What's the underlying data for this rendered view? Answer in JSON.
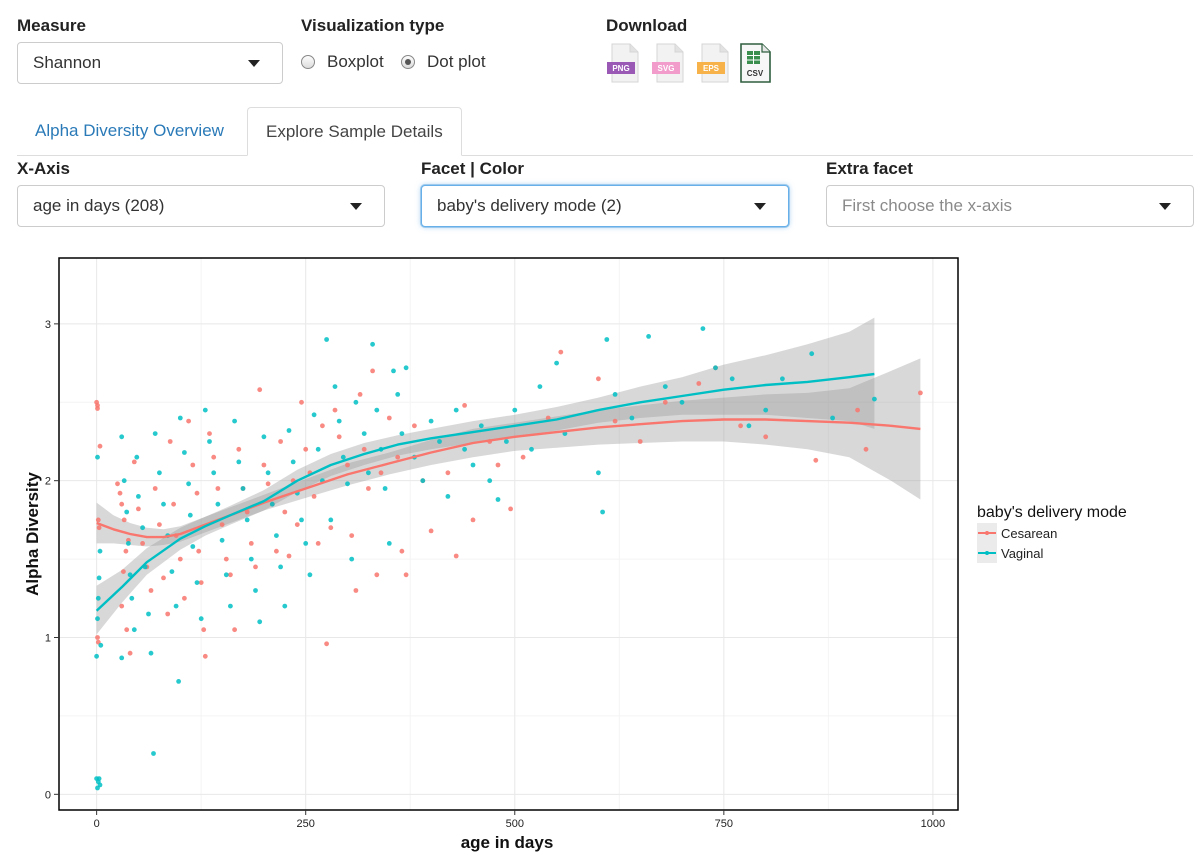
{
  "controls": {
    "measure": {
      "label": "Measure",
      "value": "Shannon"
    },
    "viz": {
      "label": "Visualization type",
      "options": [
        "Boxplot",
        "Dot plot"
      ],
      "selected": "Dot plot"
    },
    "download": {
      "label": "Download",
      "files": [
        "PNG",
        "SVG",
        "EPS",
        "CSV"
      ]
    }
  },
  "tabs": {
    "overview": "Alpha Diversity Overview",
    "details": "Explore Sample Details"
  },
  "filters": {
    "xaxis": {
      "label": "X-Axis",
      "value": "age in days (208)"
    },
    "facet": {
      "label": "Facet | Color",
      "value": "baby's delivery mode (2)"
    },
    "extra": {
      "label": "Extra facet",
      "placeholder": "First choose the x-axis"
    }
  },
  "chart_data": {
    "type": "scatter",
    "title": "",
    "xlabel": "age in days",
    "ylabel": "Alpha Diversity",
    "xlim": [
      -45,
      1030
    ],
    "ylim": [
      -0.1,
      3.42
    ],
    "xticks": [
      0,
      250,
      500,
      750,
      1000
    ],
    "yticks": [
      0,
      1,
      2,
      3
    ],
    "grid": true,
    "legend": {
      "title": "baby's delivery mode",
      "position": "right"
    },
    "series": [
      {
        "name": "Cesarean",
        "color": "#F8766D",
        "points": [
          [
            0,
            2.5
          ],
          [
            1,
            2.48
          ],
          [
            1,
            2.46
          ],
          [
            2,
            1.75
          ],
          [
            3,
            1.7
          ],
          [
            1,
            1.0
          ],
          [
            2,
            0.97
          ],
          [
            4,
            2.22
          ],
          [
            25,
            1.98
          ],
          [
            28,
            1.92
          ],
          [
            30,
            1.85
          ],
          [
            33,
            1.75
          ],
          [
            35,
            1.55
          ],
          [
            38,
            1.62
          ],
          [
            32,
            1.42
          ],
          [
            30,
            1.2
          ],
          [
            36,
            1.05
          ],
          [
            40,
            0.9
          ],
          [
            45,
            2.12
          ],
          [
            50,
            1.82
          ],
          [
            55,
            1.6
          ],
          [
            60,
            1.45
          ],
          [
            65,
            1.3
          ],
          [
            70,
            1.95
          ],
          [
            75,
            1.72
          ],
          [
            80,
            1.38
          ],
          [
            85,
            1.15
          ],
          [
            88,
            2.25
          ],
          [
            92,
            1.85
          ],
          [
            95,
            1.65
          ],
          [
            100,
            1.5
          ],
          [
            105,
            1.25
          ],
          [
            110,
            2.38
          ],
          [
            115,
            2.1
          ],
          [
            120,
            1.92
          ],
          [
            122,
            1.55
          ],
          [
            125,
            1.35
          ],
          [
            128,
            1.05
          ],
          [
            130,
            0.88
          ],
          [
            135,
            2.3
          ],
          [
            140,
            2.15
          ],
          [
            145,
            1.95
          ],
          [
            150,
            1.72
          ],
          [
            155,
            1.5
          ],
          [
            160,
            1.4
          ],
          [
            165,
            1.05
          ],
          [
            170,
            2.2
          ],
          [
            175,
            1.95
          ],
          [
            180,
            1.8
          ],
          [
            185,
            1.6
          ],
          [
            190,
            1.45
          ],
          [
            195,
            2.58
          ],
          [
            200,
            2.1
          ],
          [
            205,
            1.98
          ],
          [
            210,
            1.85
          ],
          [
            215,
            1.55
          ],
          [
            220,
            2.25
          ],
          [
            225,
            1.8
          ],
          [
            230,
            1.52
          ],
          [
            235,
            2.0
          ],
          [
            240,
            1.72
          ],
          [
            245,
            2.5
          ],
          [
            250,
            2.2
          ],
          [
            255,
            2.05
          ],
          [
            260,
            1.9
          ],
          [
            265,
            1.6
          ],
          [
            270,
            2.35
          ],
          [
            275,
            0.96
          ],
          [
            280,
            1.7
          ],
          [
            285,
            2.45
          ],
          [
            290,
            2.28
          ],
          [
            300,
            2.1
          ],
          [
            305,
            1.65
          ],
          [
            310,
            1.3
          ],
          [
            315,
            2.55
          ],
          [
            320,
            2.2
          ],
          [
            325,
            1.95
          ],
          [
            330,
            2.7
          ],
          [
            335,
            1.4
          ],
          [
            340,
            2.05
          ],
          [
            350,
            2.4
          ],
          [
            360,
            2.15
          ],
          [
            365,
            1.55
          ],
          [
            370,
            1.4
          ],
          [
            380,
            2.35
          ],
          [
            390,
            2.0
          ],
          [
            400,
            1.68
          ],
          [
            420,
            2.05
          ],
          [
            430,
            1.52
          ],
          [
            440,
            2.48
          ],
          [
            450,
            1.75
          ],
          [
            470,
            2.25
          ],
          [
            480,
            2.1
          ],
          [
            495,
            1.82
          ],
          [
            510,
            2.15
          ],
          [
            540,
            2.4
          ],
          [
            555,
            2.82
          ],
          [
            600,
            2.65
          ],
          [
            620,
            2.38
          ],
          [
            650,
            2.25
          ],
          [
            680,
            2.5
          ],
          [
            720,
            2.62
          ],
          [
            740,
            2.72
          ],
          [
            770,
            2.35
          ],
          [
            800,
            2.28
          ],
          [
            860,
            2.13
          ],
          [
            910,
            2.45
          ],
          [
            920,
            2.2
          ],
          [
            985,
            2.56
          ]
        ]
      },
      {
        "name": "Vaginal",
        "color": "#00BFC4",
        "points": [
          [
            0,
            0.1
          ],
          [
            2,
            0.08
          ],
          [
            3,
            0.1
          ],
          [
            4,
            0.06
          ],
          [
            1,
            0.04
          ],
          [
            0,
            0.88
          ],
          [
            1,
            1.12
          ],
          [
            2,
            1.25
          ],
          [
            3,
            1.38
          ],
          [
            4,
            1.55
          ],
          [
            1,
            2.15
          ],
          [
            5,
            0.95
          ],
          [
            30,
            2.28
          ],
          [
            33,
            2.0
          ],
          [
            36,
            1.8
          ],
          [
            38,
            1.6
          ],
          [
            40,
            1.4
          ],
          [
            42,
            1.25
          ],
          [
            45,
            1.05
          ],
          [
            30,
            0.87
          ],
          [
            48,
            2.15
          ],
          [
            50,
            1.9
          ],
          [
            55,
            1.7
          ],
          [
            58,
            1.45
          ],
          [
            62,
            1.15
          ],
          [
            65,
            0.9
          ],
          [
            68,
            0.26
          ],
          [
            70,
            2.3
          ],
          [
            75,
            2.05
          ],
          [
            80,
            1.85
          ],
          [
            85,
            1.65
          ],
          [
            90,
            1.42
          ],
          [
            95,
            1.2
          ],
          [
            98,
            0.72
          ],
          [
            100,
            2.4
          ],
          [
            105,
            2.18
          ],
          [
            110,
            1.98
          ],
          [
            112,
            1.78
          ],
          [
            115,
            1.58
          ],
          [
            120,
            1.35
          ],
          [
            125,
            1.12
          ],
          [
            130,
            2.45
          ],
          [
            135,
            2.25
          ],
          [
            140,
            2.05
          ],
          [
            145,
            1.85
          ],
          [
            150,
            1.62
          ],
          [
            155,
            1.4
          ],
          [
            160,
            1.2
          ],
          [
            165,
            2.38
          ],
          [
            170,
            2.12
          ],
          [
            175,
            1.95
          ],
          [
            180,
            1.75
          ],
          [
            185,
            1.5
          ],
          [
            190,
            1.3
          ],
          [
            195,
            1.1
          ],
          [
            200,
            2.28
          ],
          [
            205,
            2.05
          ],
          [
            210,
            1.85
          ],
          [
            215,
            1.65
          ],
          [
            220,
            1.45
          ],
          [
            225,
            1.2
          ],
          [
            230,
            2.32
          ],
          [
            235,
            2.12
          ],
          [
            240,
            1.92
          ],
          [
            245,
            1.75
          ],
          [
            250,
            1.6
          ],
          [
            255,
            1.4
          ],
          [
            260,
            2.42
          ],
          [
            265,
            2.2
          ],
          [
            270,
            2.0
          ],
          [
            275,
            2.9
          ],
          [
            280,
            1.75
          ],
          [
            285,
            2.6
          ],
          [
            290,
            2.38
          ],
          [
            295,
            2.15
          ],
          [
            300,
            1.98
          ],
          [
            305,
            1.5
          ],
          [
            310,
            2.5
          ],
          [
            320,
            2.3
          ],
          [
            325,
            2.05
          ],
          [
            330,
            2.87
          ],
          [
            335,
            2.45
          ],
          [
            340,
            2.2
          ],
          [
            345,
            1.95
          ],
          [
            350,
            1.6
          ],
          [
            355,
            2.7
          ],
          [
            360,
            2.55
          ],
          [
            365,
            2.3
          ],
          [
            370,
            2.72
          ],
          [
            380,
            2.15
          ],
          [
            390,
            2.0
          ],
          [
            400,
            2.38
          ],
          [
            410,
            2.25
          ],
          [
            420,
            1.9
          ],
          [
            430,
            2.45
          ],
          [
            440,
            2.2
          ],
          [
            450,
            2.1
          ],
          [
            460,
            2.35
          ],
          [
            470,
            2.0
          ],
          [
            480,
            1.88
          ],
          [
            490,
            2.25
          ],
          [
            500,
            2.45
          ],
          [
            520,
            2.2
          ],
          [
            530,
            2.6
          ],
          [
            550,
            2.75
          ],
          [
            560,
            2.3
          ],
          [
            600,
            2.05
          ],
          [
            605,
            1.8
          ],
          [
            610,
            2.9
          ],
          [
            620,
            2.55
          ],
          [
            640,
            2.4
          ],
          [
            660,
            2.92
          ],
          [
            680,
            2.6
          ],
          [
            700,
            2.5
          ],
          [
            725,
            2.97
          ],
          [
            740,
            2.72
          ],
          [
            760,
            2.65
          ],
          [
            780,
            2.35
          ],
          [
            800,
            2.45
          ],
          [
            820,
            2.65
          ],
          [
            855,
            2.81
          ],
          [
            880,
            2.4
          ],
          [
            930,
            2.52
          ]
        ]
      }
    ],
    "smooth": [
      {
        "name": "Cesarean",
        "x": [
          0,
          20,
          40,
          60,
          80,
          100,
          130,
          160,
          200,
          250,
          300,
          350,
          400,
          450,
          500,
          550,
          600,
          650,
          700,
          750,
          800,
          850,
          900,
          950,
          985
        ],
        "y": [
          1.73,
          1.69,
          1.66,
          1.64,
          1.64,
          1.66,
          1.72,
          1.78,
          1.86,
          1.95,
          2.04,
          2.11,
          2.18,
          2.24,
          2.28,
          2.31,
          2.34,
          2.36,
          2.38,
          2.39,
          2.39,
          2.38,
          2.37,
          2.35,
          2.33
        ],
        "lower": [
          1.6,
          1.6,
          1.59,
          1.58,
          1.59,
          1.61,
          1.67,
          1.73,
          1.81,
          1.89,
          1.97,
          2.04,
          2.1,
          2.15,
          2.19,
          2.21,
          2.23,
          2.24,
          2.25,
          2.25,
          2.23,
          2.2,
          2.15,
          2.0,
          1.88
        ],
        "upper": [
          1.86,
          1.78,
          1.73,
          1.7,
          1.69,
          1.71,
          1.77,
          1.83,
          1.91,
          2.01,
          2.11,
          2.18,
          2.26,
          2.33,
          2.37,
          2.41,
          2.45,
          2.48,
          2.51,
          2.53,
          2.55,
          2.56,
          2.59,
          2.7,
          2.78
        ]
      },
      {
        "name": "Vaginal",
        "x": [
          0,
          30,
          60,
          100,
          130,
          160,
          200,
          240,
          280,
          320,
          360,
          400,
          450,
          500,
          550,
          600,
          650,
          700,
          750,
          800,
          850,
          900,
          930
        ],
        "y": [
          1.17,
          1.32,
          1.48,
          1.63,
          1.71,
          1.78,
          1.87,
          2.0,
          2.1,
          2.17,
          2.23,
          2.27,
          2.31,
          2.35,
          2.39,
          2.45,
          2.5,
          2.54,
          2.58,
          2.61,
          2.63,
          2.66,
          2.68
        ],
        "lower": [
          1.02,
          1.22,
          1.4,
          1.56,
          1.65,
          1.72,
          1.81,
          1.93,
          2.03,
          2.1,
          2.16,
          2.2,
          2.24,
          2.28,
          2.32,
          2.37,
          2.4,
          2.42,
          2.42,
          2.42,
          2.4,
          2.38,
          2.33
        ],
        "upper": [
          1.33,
          1.43,
          1.57,
          1.7,
          1.77,
          1.84,
          1.94,
          2.07,
          2.17,
          2.24,
          2.29,
          2.33,
          2.38,
          2.42,
          2.47,
          2.53,
          2.6,
          2.66,
          2.74,
          2.8,
          2.87,
          2.95,
          3.04
        ]
      }
    ]
  }
}
